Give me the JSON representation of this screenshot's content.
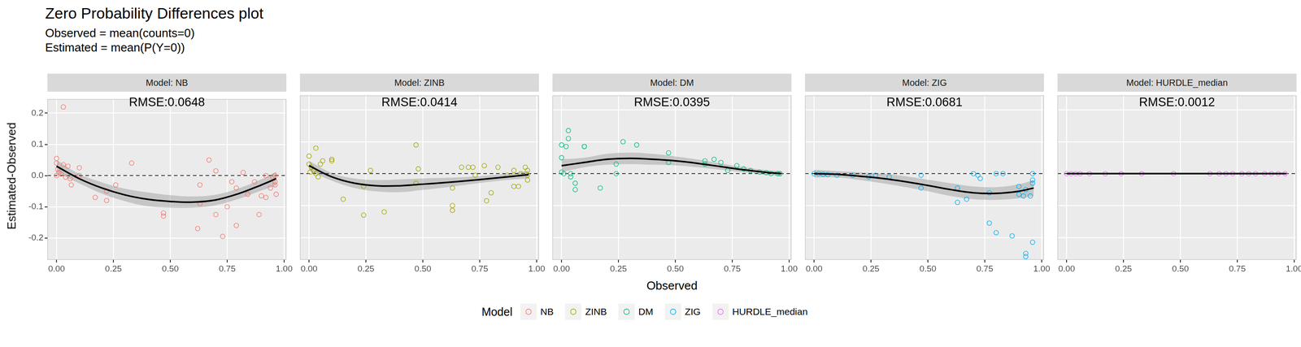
{
  "chart_data": {
    "type": "scatter",
    "title": "Zero Probability Differences plot",
    "subtitle": [
      "Observed = mean(counts=0)",
      "Estimated = mean(P(Y=0))"
    ],
    "x_label": "Observed",
    "y_label": "Estimated-Observed",
    "legend_title": "Model",
    "legend": "bottom",
    "grid": true,
    "xlim": [
      -0.04,
      1.01
    ],
    "ylim": [
      -0.27,
      0.245
    ],
    "xticks": [
      {
        "value": 0,
        "label": "0.00"
      },
      {
        "value": 0.25,
        "label": "0.25"
      },
      {
        "value": 0.5,
        "label": "0.50"
      },
      {
        "value": 0.75,
        "label": "0.75"
      },
      {
        "value": 1,
        "label": "1.00"
      }
    ],
    "yticks": [
      -0.2,
      -0.1,
      {
        "value": 0,
        "label": "0.0"
      },
      0.1,
      0.2
    ],
    "reference_line": 0,
    "panels": [
      {
        "strip": "Model: NB",
        "annotation": "RMSE:0.0648",
        "series": {
          "name": "NB",
          "color": "#F8766D",
          "marker": "open_circle",
          "x": [
            0,
            0,
            0.005,
            0.01,
            0,
            0.02,
            0.03,
            0.03,
            0.04,
            0.05,
            0.06,
            0.065,
            0.1,
            0.1,
            0.17,
            0.22,
            0.22,
            0.26,
            0.33,
            0.47,
            0.47,
            0.62,
            0.63,
            0.63,
            0.67,
            0.7,
            0.7,
            0.73,
            0.75,
            0.77,
            0.79,
            0.79,
            0.82,
            0.84,
            0.87,
            0.89,
            0.9,
            0.92,
            0.92,
            0.94,
            0.95,
            0.96,
            0.96,
            0.965,
            0.96
          ],
          "values": [
            0.055,
            0.04,
            0.02,
            0.01,
            0,
            0.005,
            0.22,
            0.035,
            -0.005,
            0.03,
            -0.01,
            -0.03,
            0.025,
            0,
            -0.07,
            -0.08,
            -0.05,
            -0.03,
            0.04,
            -0.12,
            -0.13,
            -0.17,
            -0.03,
            -0.09,
            0.05,
            0.015,
            -0.125,
            -0.195,
            -0.1,
            -0.02,
            -0.16,
            -0.04,
            0.01,
            -0.06,
            -0.02,
            -0.125,
            -0.065,
            -0.07,
            0,
            -0.04,
            -0.005,
            -0.02,
            -0.03,
            -0.06,
            0
          ]
        },
        "smooth": {
          "x": [
            0,
            0.1,
            0.2,
            0.3,
            0.4,
            0.5,
            0.6,
            0.7,
            0.8,
            0.9,
            0.965
          ],
          "values": [
            0.03,
            -0.01,
            -0.04,
            -0.062,
            -0.076,
            -0.083,
            -0.085,
            -0.078,
            -0.058,
            -0.03,
            -0.01
          ],
          "upper": [
            0.05,
            0.005,
            -0.022,
            -0.042,
            -0.054,
            -0.063,
            -0.067,
            -0.061,
            -0.041,
            -0.012,
            0.012
          ],
          "lower": [
            0.01,
            -0.025,
            -0.058,
            -0.082,
            -0.098,
            -0.103,
            -0.103,
            -0.095,
            -0.075,
            -0.048,
            -0.032
          ]
        }
      },
      {
        "strip": "Model: ZINB",
        "annotation": "RMSE:0.0414",
        "series": {
          "name": "ZINB",
          "color": "#A3A500",
          "marker": "open_circle",
          "x": [
            0,
            0,
            0.01,
            0.005,
            0.02,
            0.03,
            0.03,
            0.04,
            0.05,
            0.06,
            0.1,
            0.1,
            0.15,
            0.24,
            0.24,
            0.27,
            0.33,
            0.47,
            0.47,
            0.48,
            0.63,
            0.63,
            0.63,
            0.67,
            0.7,
            0.72,
            0.73,
            0.77,
            0.78,
            0.8,
            0.83,
            0.87,
            0.9,
            0.9,
            0.92,
            0.93,
            0.95,
            0.96,
            0.96,
            0.96
          ],
          "values": [
            0.055,
            0.03,
            0.02,
            0.005,
            0.01,
            0.08,
            0,
            -0.01,
            0.03,
            0.04,
            0.045,
            0.04,
            -0.08,
            -0.13,
            -0.04,
            0.01,
            -0.12,
            0.09,
            -0.03,
            0.015,
            -0.1,
            -0.115,
            -0.045,
            0.02,
            0.02,
            0.02,
            -0.005,
            0.025,
            -0.085,
            -0.06,
            0.02,
            -0.005,
            -0.04,
            0.01,
            -0.04,
            0,
            0.02,
            0.01,
            -0.02,
            -0.005
          ]
        },
        "smooth": {
          "x": [
            0,
            0.1,
            0.2,
            0.3,
            0.4,
            0.5,
            0.6,
            0.7,
            0.8,
            0.9,
            0.965
          ],
          "values": [
            0.025,
            -0.01,
            -0.03,
            -0.038,
            -0.038,
            -0.033,
            -0.028,
            -0.022,
            -0.015,
            -0.008,
            -0.003
          ],
          "upper": [
            0.04,
            0.002,
            -0.015,
            -0.02,
            -0.018,
            -0.015,
            -0.013,
            -0.01,
            -0.005,
            0.002,
            0.009
          ],
          "lower": [
            0.01,
            -0.022,
            -0.045,
            -0.056,
            -0.058,
            -0.051,
            -0.043,
            -0.034,
            -0.025,
            -0.018,
            -0.015
          ]
        }
      },
      {
        "strip": "Model: DM",
        "annotation": "RMSE:0.0395",
        "series": {
          "name": "DM",
          "color": "#00BF7D",
          "marker": "open_circle",
          "x": [
            0,
            0,
            0,
            0.01,
            0.02,
            0.03,
            0.03,
            0.04,
            0.04,
            0.06,
            0.06,
            0.1,
            0.1,
            0.17,
            0.24,
            0.24,
            0.27,
            0.33,
            0.47,
            0.47,
            0.63,
            0.63,
            0.67,
            0.7,
            0.73,
            0.77,
            0.8,
            0.83,
            0.87,
            0.9,
            0.92,
            0.95,
            0.96
          ],
          "values": [
            0.09,
            0.05,
            0.005,
            0,
            0.085,
            0.11,
            0.135,
            0,
            -0.01,
            -0.03,
            -0.05,
            0.085,
            0.085,
            -0.045,
            0,
            0.03,
            0.1,
            0.09,
            0.065,
            0.035,
            0.04,
            0.03,
            0.045,
            0.035,
            0.01,
            0.025,
            0.015,
            0.01,
            0.005,
            0.003,
            0,
            0,
            0
          ]
        },
        "smooth": {
          "x": [
            0,
            0.1,
            0.2,
            0.3,
            0.4,
            0.5,
            0.6,
            0.7,
            0.8,
            0.9,
            0.965
          ],
          "values": [
            0.025,
            0.035,
            0.045,
            0.048,
            0.045,
            0.04,
            0.032,
            0.022,
            0.012,
            0.004,
            0
          ],
          "upper": [
            0.045,
            0.05,
            0.062,
            0.066,
            0.062,
            0.054,
            0.044,
            0.032,
            0.02,
            0.011,
            0.008
          ],
          "lower": [
            0.005,
            0.02,
            0.028,
            0.03,
            0.028,
            0.026,
            0.02,
            0.012,
            0.004,
            -0.003,
            -0.008
          ]
        }
      },
      {
        "strip": "Model: ZIG",
        "annotation": "RMSE:0.0681",
        "series": {
          "name": "ZIG",
          "color": "#00B0F6",
          "marker": "open_circle",
          "x": [
            0,
            0.02,
            0.04,
            0.06,
            0.1,
            0.17,
            0.24,
            0.27,
            0.33,
            0.47,
            0.47,
            0.63,
            0.63,
            0.67,
            0.7,
            0.72,
            0.73,
            0.77,
            0.77,
            0.8,
            0.8,
            0.83,
            0.87,
            0.9,
            0.9,
            0.92,
            0.93,
            0.93,
            0.93,
            0.95,
            0.96,
            0.96,
            0.96,
            0.96
          ],
          "values": [
            0,
            0,
            -0.002,
            -0.003,
            -0.005,
            -0.005,
            -0.01,
            -0.005,
            -0.01,
            -0.005,
            -0.045,
            -0.09,
            -0.045,
            -0.08,
            0,
            -0.005,
            -0.015,
            -0.155,
            -0.06,
            -0.185,
            0,
            0,
            -0.195,
            -0.04,
            -0.065,
            -0.07,
            -0.25,
            -0.26,
            -0.05,
            -0.07,
            -0.215,
            -0.02,
            -0.03,
            0
          ]
        },
        "smooth": {
          "x": [
            0,
            0.1,
            0.2,
            0.3,
            0.4,
            0.5,
            0.6,
            0.7,
            0.8,
            0.9,
            0.965
          ],
          "values": [
            0,
            -0.002,
            -0.008,
            -0.015,
            -0.025,
            -0.037,
            -0.05,
            -0.06,
            -0.062,
            -0.055,
            -0.045
          ],
          "upper": [
            0.012,
            0.008,
            0.004,
            0,
            -0.008,
            -0.019,
            -0.03,
            -0.04,
            -0.042,
            -0.033,
            -0.02
          ],
          "lower": [
            -0.012,
            -0.012,
            -0.02,
            -0.03,
            -0.042,
            -0.055,
            -0.07,
            -0.08,
            -0.082,
            -0.077,
            -0.07
          ]
        }
      },
      {
        "strip": "Model: HURDLE_median",
        "annotation": "RMSE:0.0012",
        "series": {
          "name": "HURDLE_median",
          "color": "#E76BF3",
          "marker": "open_circle",
          "x": [
            0,
            0.02,
            0.04,
            0.06,
            0.1,
            0.17,
            0.24,
            0.33,
            0.47,
            0.63,
            0.67,
            0.7,
            0.73,
            0.77,
            0.8,
            0.83,
            0.87,
            0.9,
            0.93,
            0.96
          ],
          "values": [
            0,
            0,
            0,
            0,
            0,
            0,
            0,
            0,
            0,
            0,
            0,
            0,
            0,
            0,
            0,
            0,
            0,
            0,
            0,
            0
          ]
        },
        "smooth": {
          "x": [
            0,
            0.1,
            0.2,
            0.3,
            0.4,
            0.5,
            0.6,
            0.7,
            0.8,
            0.9,
            0.965
          ],
          "values": [
            0,
            0,
            0,
            0,
            0,
            0,
            0,
            0,
            0,
            0,
            0
          ],
          "upper": [
            0.002,
            0.001,
            0.001,
            0.001,
            0.001,
            0.001,
            0.001,
            0.001,
            0.001,
            0.001,
            0.002
          ],
          "lower": [
            -0.002,
            -0.001,
            -0.001,
            -0.001,
            -0.001,
            -0.001,
            -0.001,
            -0.001,
            -0.001,
            -0.001,
            -0.002
          ]
        }
      }
    ]
  }
}
